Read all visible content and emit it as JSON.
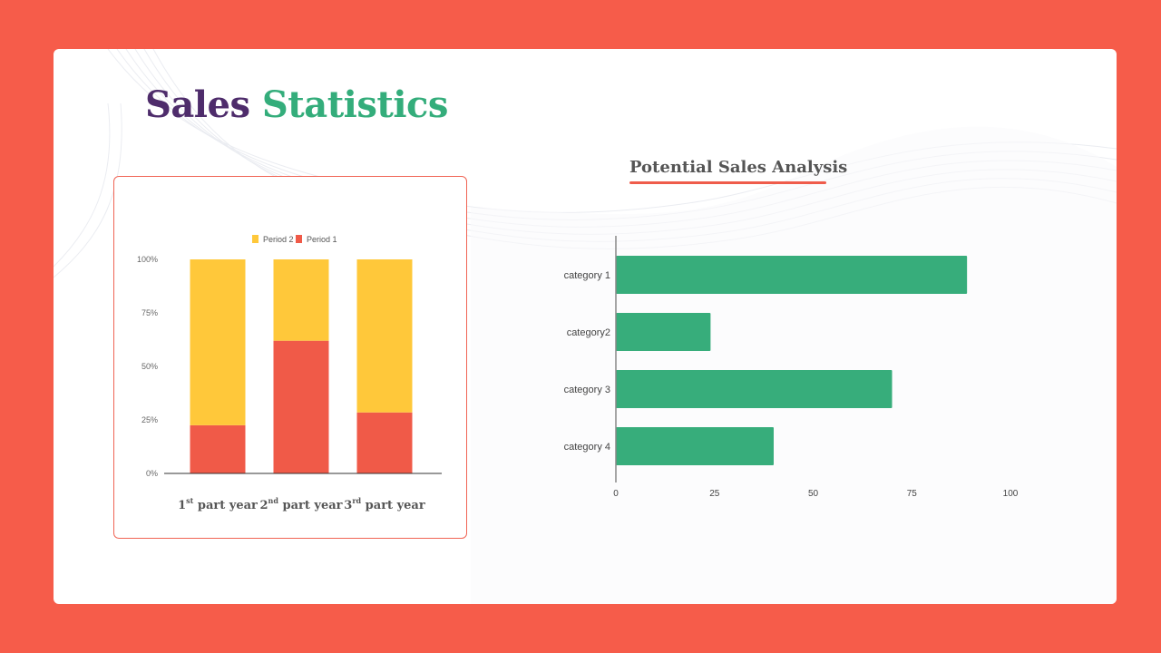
{
  "slide": {
    "title_word1": "Sales",
    "title_word2": "Statistics",
    "colors": {
      "background": "#F65C4A",
      "title_purple": "#4E2C6B",
      "title_green": "#34AD7B"
    }
  },
  "chart_data": [
    {
      "type": "bar",
      "stacked": true,
      "orientation": "vertical",
      "categories": [
        {
          "prefix": "1",
          "sup": "st",
          "suffix": " part year"
        },
        {
          "prefix": "2",
          "sup": "nd",
          "suffix": " part year"
        },
        {
          "prefix": "3",
          "sup": "rd",
          "suffix": " part year"
        }
      ],
      "series": [
        {
          "name": "Period 1",
          "color": "#F05A48",
          "values": [
            22.5,
            62,
            28.5
          ]
        },
        {
          "name": "Period 2",
          "color": "#FFC83A",
          "values": [
            77.5,
            38,
            71.5
          ]
        }
      ],
      "yticks": [
        "0%",
        "25%",
        "50%",
        "75%",
        "100%"
      ],
      "ylim": [
        0,
        100
      ],
      "legend_position": "top"
    },
    {
      "type": "bar",
      "orientation": "horizontal",
      "title": "Potential Sales Analysis",
      "categories": [
        "category 1",
        "category2",
        "category 3",
        "category 4"
      ],
      "values": [
        89,
        24,
        70,
        40
      ],
      "color": "#37AD7B",
      "xticks": [
        "0",
        "25",
        "50",
        "75",
        "100"
      ],
      "xlim": [
        0,
        100
      ]
    }
  ]
}
